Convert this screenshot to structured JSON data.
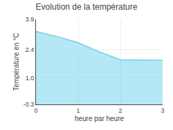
{
  "chart_data": {
    "type": "area",
    "title": "Evolution de la température",
    "xlabel": "heure par heure",
    "ylabel": "Température en °C",
    "x": [
      0,
      0.5,
      1.0,
      1.5,
      2.0,
      2.5,
      3.0
    ],
    "values": [
      3.3,
      3.05,
      2.75,
      2.3,
      1.9,
      1.88,
      1.88
    ],
    "color": "#6dcfea",
    "xlim": [
      0,
      3
    ],
    "xticks": [
      0,
      1,
      2,
      3
    ],
    "ylim": [
      -0.3,
      3.9
    ],
    "yticks": [
      -0.3,
      {
        "value": 1.0,
        "label": "1.0"
      },
      2.4,
      3.9
    ],
    "grid": true
  }
}
